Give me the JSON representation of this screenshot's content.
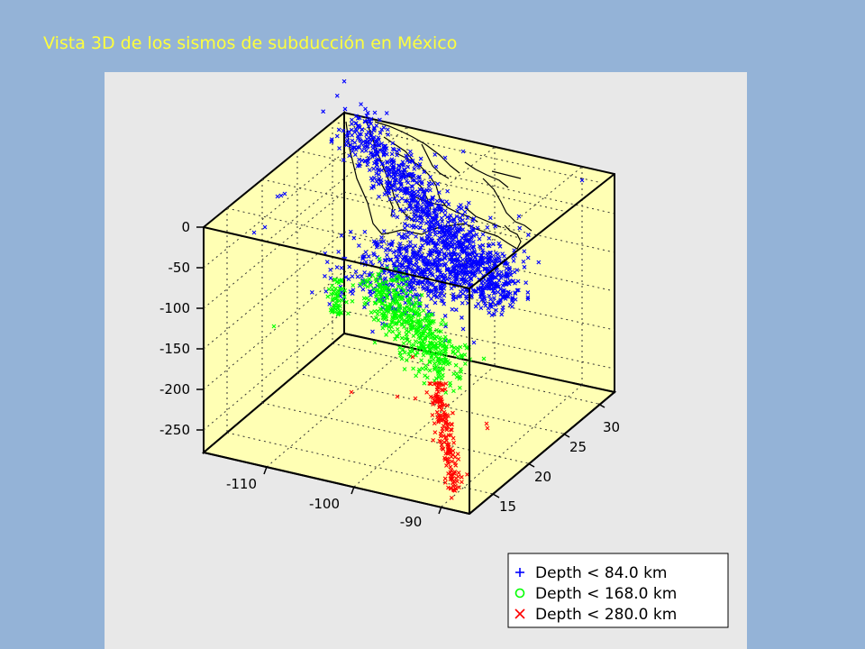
{
  "slide": {
    "title": "Vista 3D de los sismos de subducción en México"
  },
  "colors": {
    "background": "#94B3D7",
    "title": "#FFFF3C",
    "panel": "#E8E8E8",
    "box_face": "#FFFFB4",
    "shallow": "#0000FF",
    "intermediate": "#00FF00",
    "deep": "#FF0000"
  },
  "chart_data": {
    "type": "scatter",
    "title": "",
    "xlabel": "",
    "ylabel": "",
    "zlabel": "",
    "x_ticks": [
      "-110",
      "-100",
      "-90"
    ],
    "y_ticks": [
      "15",
      "20",
      "25",
      "30"
    ],
    "z_ticks": [
      "0",
      "-50",
      "-100",
      "-150",
      "-200",
      "-250"
    ],
    "xlim": [
      -117,
      -87
    ],
    "ylim": [
      13,
      33
    ],
    "zlim": [
      -280,
      0
    ],
    "grid": true,
    "legend_position": "bottom-right",
    "series": [
      {
        "name": "Depth < 84.0 km",
        "marker": "+",
        "color": "#0000FF",
        "note_range_km": [
          0,
          84
        ]
      },
      {
        "name": "Depth < 168.0 km",
        "marker": "o",
        "color": "#00FF00",
        "note_range_km": [
          84,
          168
        ]
      },
      {
        "name": "Depth < 280.0 km",
        "marker": "x",
        "color": "#FF0000",
        "note_range_km": [
          168,
          280
        ]
      }
    ]
  }
}
